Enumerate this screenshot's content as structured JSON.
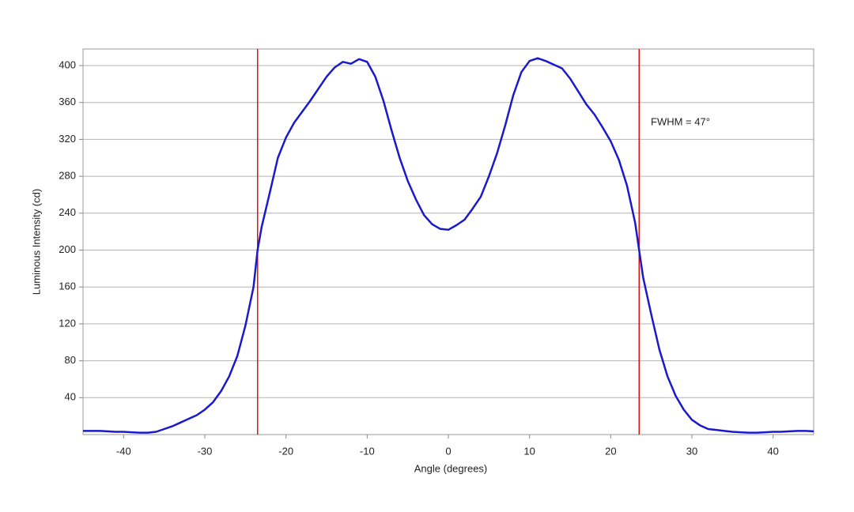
{
  "chart_data": {
    "type": "line",
    "xlabel": "Angle (degrees)",
    "ylabel": "Luminous Intensity (cd)",
    "annotation": "FWHM = 47°",
    "x": [
      -45,
      -44,
      -43,
      -42,
      -41,
      -40,
      -39,
      -38,
      -37,
      -36,
      -35,
      -34,
      -33,
      -32,
      -31,
      -30,
      -29,
      -28,
      -27,
      -26,
      -25,
      -24,
      -23.5,
      -23,
      -22,
      -21,
      -20,
      -19,
      -18,
      -17,
      -16,
      -15,
      -14,
      -13,
      -12,
      -11,
      -10,
      -9,
      -8,
      -7,
      -6,
      -5,
      -4,
      -3,
      -2,
      -1,
      0,
      1,
      2,
      3,
      4,
      5,
      6,
      7,
      8,
      9,
      10,
      11,
      12,
      13,
      14,
      15,
      16,
      17,
      18,
      19,
      20,
      21,
      22,
      23,
      23.5,
      24,
      25,
      26,
      27,
      28,
      29,
      30,
      31,
      32,
      33,
      34,
      35,
      36,
      37,
      38,
      39,
      40,
      41,
      42,
      43,
      44,
      45
    ],
    "series": [
      {
        "name": "Luminous Intensity",
        "color": "#1a1acc",
        "values": [
          4,
          4,
          4,
          3.5,
          3,
          3,
          2.5,
          2,
          2,
          3,
          6,
          9,
          13,
          17,
          21,
          27,
          35,
          47,
          63,
          85,
          118,
          160,
          200,
          225,
          262,
          300,
          322,
          338,
          350,
          362,
          375,
          388,
          398,
          404,
          402,
          407,
          404,
          388,
          362,
          330,
          300,
          275,
          255,
          238,
          228,
          223,
          222,
          227,
          233,
          245,
          258,
          280,
          305,
          335,
          368,
          393,
          405,
          408,
          405,
          401,
          397,
          386,
          372,
          358,
          347,
          333,
          318,
          298,
          270,
          230,
          200,
          170,
          130,
          92,
          63,
          42,
          27,
          16,
          10,
          6,
          5,
          4,
          3,
          2.5,
          2,
          2,
          2.5,
          3,
          3,
          3.5,
          4,
          4,
          3.5
        ]
      }
    ],
    "vlines": [
      -23.5,
      23.5
    ],
    "vline_color": "#e01010",
    "xlim": [
      -45,
      45
    ],
    "xticks": [
      -40,
      -30,
      -20,
      -10,
      0,
      10,
      20,
      30,
      40
    ],
    "ylim": [
      0,
      418
    ],
    "yticks": [
      40,
      80,
      120,
      160,
      200,
      240,
      280,
      320,
      360,
      400
    ],
    "grid": true
  }
}
